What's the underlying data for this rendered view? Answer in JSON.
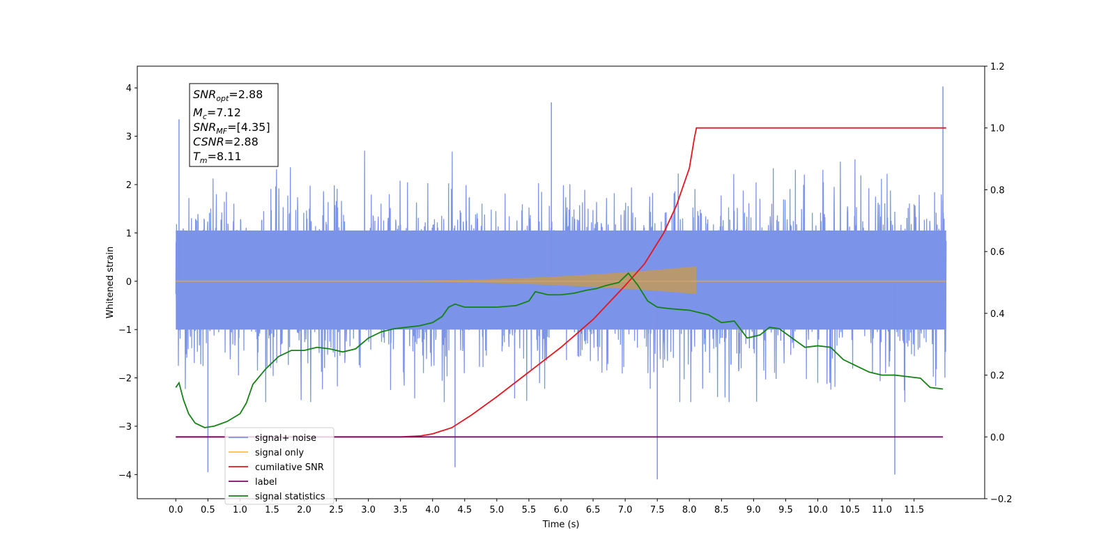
{
  "chart_data": {
    "type": "line",
    "xlabel": "Time (s)",
    "ylabel": "Whitened strain",
    "xlim": [
      -0.6,
      12.6
    ],
    "ylim": [
      -4.5,
      4.45
    ],
    "y2lim": [
      -0.2,
      1.2
    ],
    "x_ticks": [
      0.0,
      0.5,
      1.0,
      1.5,
      2.0,
      2.5,
      3.0,
      3.5,
      4.0,
      4.5,
      5.0,
      5.5,
      6.0,
      6.5,
      7.0,
      7.5,
      8.0,
      8.5,
      9.0,
      9.5,
      10.0,
      10.5,
      11.0,
      11.5
    ],
    "x_tick_labels": [
      "0.0",
      "0.5",
      "1.0",
      "1.5",
      "2.0",
      "2.5",
      "3.0",
      "3.5",
      "4.0",
      "4.5",
      "5.0",
      "5.5",
      "6.0",
      "6.5",
      "7.0",
      "7.5",
      "8.0",
      "8.5",
      "9.0",
      "9.5",
      "10.0",
      "10.5",
      "11.0",
      "11.5"
    ],
    "y_ticks": [
      -4,
      -3,
      -2,
      -1,
      0,
      1,
      2,
      3,
      4
    ],
    "y_tick_labels": [
      "−4",
      "−3",
      "−2",
      "−1",
      "0",
      "1",
      "2",
      "3",
      "4"
    ],
    "y2_ticks": [
      -0.2,
      0.0,
      0.2,
      0.4,
      0.6,
      0.8,
      1.0,
      1.2
    ],
    "y2_tick_labels": [
      "−0.2",
      "0.0",
      "0.2",
      "0.4",
      "0.6",
      "0.8",
      "1.0",
      "1.2"
    ],
    "grid": false,
    "legend_position": "lower-left",
    "annotation": {
      "snr_opt": {
        "main": "SNR",
        "sub": "opt",
        "value": "=2.88"
      },
      "mc": {
        "main": "M",
        "sub": "c",
        "value": "=7.12"
      },
      "snr_mf": {
        "main": "SNR",
        "sub": "MF",
        "value": "=[4.35]"
      },
      "csnr": {
        "main": "CSNR",
        "value": "=2.88"
      },
      "tm": {
        "main": "T",
        "sub": "m",
        "value": "=8.11"
      }
    },
    "series": [
      {
        "name": "signal+ noise",
        "color": "#7b93e8",
        "axis": "left",
        "description_points": {
          "x_range": [
            0.0,
            12.0
          ],
          "envelope": [
            -2.2,
            2.5
          ],
          "notable_peaks": [
            [
              0.05,
              3.35
            ],
            [
              0.5,
              -3.95
            ],
            [
              5.85,
              3.7
            ],
            [
              7.5,
              -4.1
            ],
            [
              11.95,
              4.03
            ],
            [
              11.2,
              -4.0
            ],
            [
              4.35,
              -3.85
            ]
          ]
        }
      },
      {
        "name": "signal only",
        "color": "#ffbf40",
        "axis": "left",
        "chirp_end": 8.11,
        "final_amplitude": 0.3
      },
      {
        "name": "cumilative SNR",
        "color": "#e8141e",
        "axis": "right",
        "x": [
          0.0,
          3.0,
          3.5,
          3.8,
          4.0,
          4.3,
          4.6,
          5.0,
          5.5,
          6.0,
          6.5,
          7.0,
          7.3,
          7.6,
          7.8,
          8.0,
          8.08,
          8.11,
          12.0
        ],
        "y": [
          0.0,
          0.0,
          0.0,
          0.003,
          0.01,
          0.03,
          0.07,
          0.13,
          0.21,
          0.29,
          0.38,
          0.49,
          0.56,
          0.66,
          0.75,
          0.87,
          0.97,
          1.0,
          1.0
        ]
      },
      {
        "name": "label",
        "color": "#7a0a6a",
        "axis": "right",
        "x": [
          0.0,
          11.95
        ],
        "y": [
          0.0,
          0.0
        ]
      },
      {
        "name": "signal statistics",
        "color": "#148214",
        "axis": "right",
        "x": [
          0.0,
          0.05,
          0.12,
          0.2,
          0.3,
          0.45,
          0.6,
          0.8,
          1.0,
          1.1,
          1.2,
          1.4,
          1.6,
          1.8,
          2.0,
          2.2,
          2.4,
          2.6,
          2.8,
          3.0,
          3.2,
          3.4,
          3.6,
          3.8,
          4.0,
          4.15,
          4.25,
          4.35,
          4.5,
          4.8,
          5.0,
          5.3,
          5.5,
          5.6,
          5.8,
          6.0,
          6.2,
          6.4,
          6.55,
          6.7,
          6.9,
          7.05,
          7.2,
          7.35,
          7.5,
          7.7,
          8.0,
          8.3,
          8.5,
          8.7,
          8.9,
          9.1,
          9.25,
          9.4,
          9.6,
          9.8,
          10.0,
          10.2,
          10.4,
          10.6,
          10.8,
          11.0,
          11.2,
          11.4,
          11.6,
          11.75,
          11.95
        ],
        "y": [
          0.16,
          0.175,
          0.12,
          0.075,
          0.045,
          0.03,
          0.035,
          0.05,
          0.075,
          0.11,
          0.17,
          0.22,
          0.26,
          0.28,
          0.28,
          0.29,
          0.285,
          0.275,
          0.285,
          0.32,
          0.34,
          0.35,
          0.355,
          0.36,
          0.37,
          0.39,
          0.42,
          0.43,
          0.42,
          0.42,
          0.42,
          0.425,
          0.44,
          0.47,
          0.46,
          0.46,
          0.465,
          0.475,
          0.48,
          0.49,
          0.5,
          0.53,
          0.49,
          0.44,
          0.42,
          0.415,
          0.41,
          0.395,
          0.37,
          0.375,
          0.32,
          0.33,
          0.355,
          0.35,
          0.32,
          0.29,
          0.295,
          0.29,
          0.25,
          0.23,
          0.21,
          0.2,
          0.2,
          0.195,
          0.19,
          0.16,
          0.155
        ]
      }
    ],
    "legend": [
      {
        "label": "signal+ noise",
        "color": "#7b93e8"
      },
      {
        "label": "signal only",
        "color": "#ffbf40"
      },
      {
        "label": "cumilative SNR",
        "color": "#e8141e"
      },
      {
        "label": "label",
        "color": "#7a0a6a"
      },
      {
        "label": "signal statistics",
        "color": "#148214"
      }
    ]
  }
}
